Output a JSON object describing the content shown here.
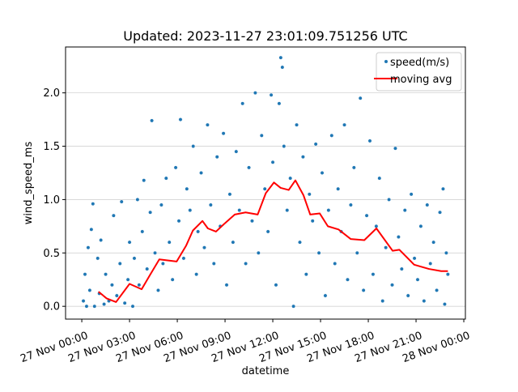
{
  "chart_data": {
    "type": "scatter",
    "title": "Updated: 2023-11-27 23:01:09.751256 UTC",
    "xlabel": "datetime",
    "ylabel": "wind_speed_ms",
    "x_units": "hours since 27 Nov 00:00",
    "xlim": [
      -1.02,
      24.1
    ],
    "ylim": [
      -0.12,
      2.43
    ],
    "grid": "y",
    "legend_position": "top-right",
    "x_ticks": [
      {
        "value": 0,
        "label": "27 Nov 00:00"
      },
      {
        "value": 3,
        "label": "27 Nov 03:00"
      },
      {
        "value": 6,
        "label": "27 Nov 06:00"
      },
      {
        "value": 9,
        "label": "27 Nov 09:00"
      },
      {
        "value": 12,
        "label": "27 Nov 12:00"
      },
      {
        "value": 15,
        "label": "27 Nov 15:00"
      },
      {
        "value": 18,
        "label": "27 Nov 18:00"
      },
      {
        "value": 21,
        "label": "27 Nov 21:00"
      },
      {
        "value": 24,
        "label": "28 Nov 00:00"
      }
    ],
    "y_ticks": [
      {
        "value": 0,
        "label": "0.0"
      },
      {
        "value": 0.5,
        "label": "0.5"
      },
      {
        "value": 1.0,
        "label": "1.0"
      },
      {
        "value": 1.5,
        "label": "1.5"
      },
      {
        "value": 2.0,
        "label": "2.0"
      }
    ],
    "series": [
      {
        "name": "speed(m/s)",
        "kind": "scatter",
        "color": "#1f77b4",
        "note_sampled": true,
        "points": [
          [
            0.1,
            0.05
          ],
          [
            0.2,
            0.3
          ],
          [
            0.3,
            0.0
          ],
          [
            0.4,
            0.55
          ],
          [
            0.5,
            0.15
          ],
          [
            0.6,
            0.72
          ],
          [
            0.7,
            0.96
          ],
          [
            0.8,
            0.0
          ],
          [
            1.0,
            0.45
          ],
          [
            1.1,
            0.12
          ],
          [
            1.2,
            0.62
          ],
          [
            1.4,
            0.02
          ],
          [
            1.5,
            0.3
          ],
          [
            1.7,
            0.05
          ],
          [
            1.9,
            0.2
          ],
          [
            2.0,
            0.85
          ],
          [
            2.2,
            0.1
          ],
          [
            2.4,
            0.4
          ],
          [
            2.5,
            0.98
          ],
          [
            2.7,
            0.03
          ],
          [
            2.9,
            0.25
          ],
          [
            3.0,
            0.6
          ],
          [
            3.2,
            0.0
          ],
          [
            3.3,
            0.45
          ],
          [
            3.5,
            1.0
          ],
          [
            3.6,
            0.2
          ],
          [
            3.8,
            0.7
          ],
          [
            3.9,
            1.18
          ],
          [
            4.1,
            0.35
          ],
          [
            4.3,
            0.88
          ],
          [
            4.4,
            1.74
          ],
          [
            4.6,
            0.5
          ],
          [
            4.8,
            0.15
          ],
          [
            5.0,
            0.95
          ],
          [
            5.1,
            0.4
          ],
          [
            5.3,
            1.2
          ],
          [
            5.5,
            0.6
          ],
          [
            5.7,
            0.25
          ],
          [
            5.9,
            1.3
          ],
          [
            6.1,
            0.8
          ],
          [
            6.2,
            1.75
          ],
          [
            6.4,
            0.45
          ],
          [
            6.6,
            1.1
          ],
          [
            6.8,
            0.9
          ],
          [
            7.0,
            1.5
          ],
          [
            7.2,
            0.3
          ],
          [
            7.3,
            0.7
          ],
          [
            7.5,
            1.25
          ],
          [
            7.7,
            0.55
          ],
          [
            7.9,
            1.7
          ],
          [
            8.1,
            0.95
          ],
          [
            8.3,
            0.4
          ],
          [
            8.5,
            1.4
          ],
          [
            8.7,
            0.75
          ],
          [
            8.9,
            1.62
          ],
          [
            9.1,
            0.2
          ],
          [
            9.3,
            1.05
          ],
          [
            9.5,
            0.6
          ],
          [
            9.7,
            1.45
          ],
          [
            9.9,
            0.9
          ],
          [
            10.1,
            1.9
          ],
          [
            10.3,
            0.4
          ],
          [
            10.5,
            1.3
          ],
          [
            10.7,
            0.8
          ],
          [
            10.9,
            2.0
          ],
          [
            11.1,
            0.5
          ],
          [
            11.3,
            1.6
          ],
          [
            11.5,
            1.1
          ],
          [
            11.7,
            0.7
          ],
          [
            11.9,
            1.98
          ],
          [
            12.0,
            1.35
          ],
          [
            12.2,
            0.2
          ],
          [
            12.4,
            1.9
          ],
          [
            12.5,
            2.33
          ],
          [
            12.6,
            2.24
          ],
          [
            12.7,
            1.5
          ],
          [
            12.9,
            0.9
          ],
          [
            13.1,
            1.2
          ],
          [
            13.3,
            0.0
          ],
          [
            13.5,
            1.7
          ],
          [
            13.7,
            0.6
          ],
          [
            13.9,
            1.4
          ],
          [
            14.1,
            0.3
          ],
          [
            14.3,
            1.05
          ],
          [
            14.5,
            0.8
          ],
          [
            14.7,
            1.52
          ],
          [
            14.9,
            0.5
          ],
          [
            15.1,
            1.25
          ],
          [
            15.3,
            0.1
          ],
          [
            15.5,
            0.9
          ],
          [
            15.7,
            1.6
          ],
          [
            15.9,
            0.4
          ],
          [
            16.1,
            1.1
          ],
          [
            16.3,
            0.7
          ],
          [
            16.5,
            1.7
          ],
          [
            16.7,
            0.25
          ],
          [
            16.9,
            0.95
          ],
          [
            17.1,
            1.3
          ],
          [
            17.3,
            0.5
          ],
          [
            17.5,
            1.95
          ],
          [
            17.7,
            0.15
          ],
          [
            17.9,
            0.85
          ],
          [
            18.1,
            1.55
          ],
          [
            18.3,
            0.3
          ],
          [
            18.5,
            0.75
          ],
          [
            18.7,
            1.2
          ],
          [
            18.9,
            0.05
          ],
          [
            19.1,
            0.55
          ],
          [
            19.3,
            1.0
          ],
          [
            19.5,
            0.2
          ],
          [
            19.7,
            1.48
          ],
          [
            19.9,
            0.65
          ],
          [
            20.1,
            0.35
          ],
          [
            20.3,
            0.9
          ],
          [
            20.5,
            0.1
          ],
          [
            20.7,
            1.05
          ],
          [
            20.9,
            0.45
          ],
          [
            21.1,
            0.25
          ],
          [
            21.3,
            0.75
          ],
          [
            21.5,
            0.05
          ],
          [
            21.7,
            0.95
          ],
          [
            21.9,
            0.4
          ],
          [
            22.1,
            0.6
          ],
          [
            22.3,
            0.15
          ],
          [
            22.5,
            0.88
          ],
          [
            22.7,
            1.1
          ],
          [
            22.9,
            0.5
          ],
          [
            23.0,
            0.3
          ],
          [
            22.8,
            0.02
          ]
        ]
      },
      {
        "name": "moving avg",
        "kind": "line",
        "color": "#ff0000",
        "points": [
          [
            1.05,
            0.137
          ],
          [
            1.56,
            0.074
          ],
          [
            2.15,
            0.04
          ],
          [
            3.0,
            0.21
          ],
          [
            3.76,
            0.16
          ],
          [
            4.27,
            0.29
          ],
          [
            4.87,
            0.44
          ],
          [
            5.96,
            0.42
          ],
          [
            6.56,
            0.57
          ],
          [
            6.98,
            0.71
          ],
          [
            7.58,
            0.8
          ],
          [
            7.92,
            0.73
          ],
          [
            8.43,
            0.7
          ],
          [
            8.93,
            0.77
          ],
          [
            9.61,
            0.86
          ],
          [
            10.29,
            0.88
          ],
          [
            11.05,
            0.86
          ],
          [
            11.56,
            1.06
          ],
          [
            12.07,
            1.16
          ],
          [
            12.49,
            1.11
          ],
          [
            13.0,
            1.09
          ],
          [
            13.42,
            1.18
          ],
          [
            13.93,
            1.04
          ],
          [
            14.35,
            0.86
          ],
          [
            14.95,
            0.87
          ],
          [
            15.46,
            0.75
          ],
          [
            16.13,
            0.72
          ],
          [
            16.9,
            0.63
          ],
          [
            17.75,
            0.62
          ],
          [
            18.51,
            0.73
          ],
          [
            19.53,
            0.52
          ],
          [
            19.95,
            0.53
          ],
          [
            20.88,
            0.39
          ],
          [
            21.81,
            0.35
          ],
          [
            22.58,
            0.33
          ],
          [
            23.0,
            0.33
          ]
        ]
      }
    ]
  }
}
